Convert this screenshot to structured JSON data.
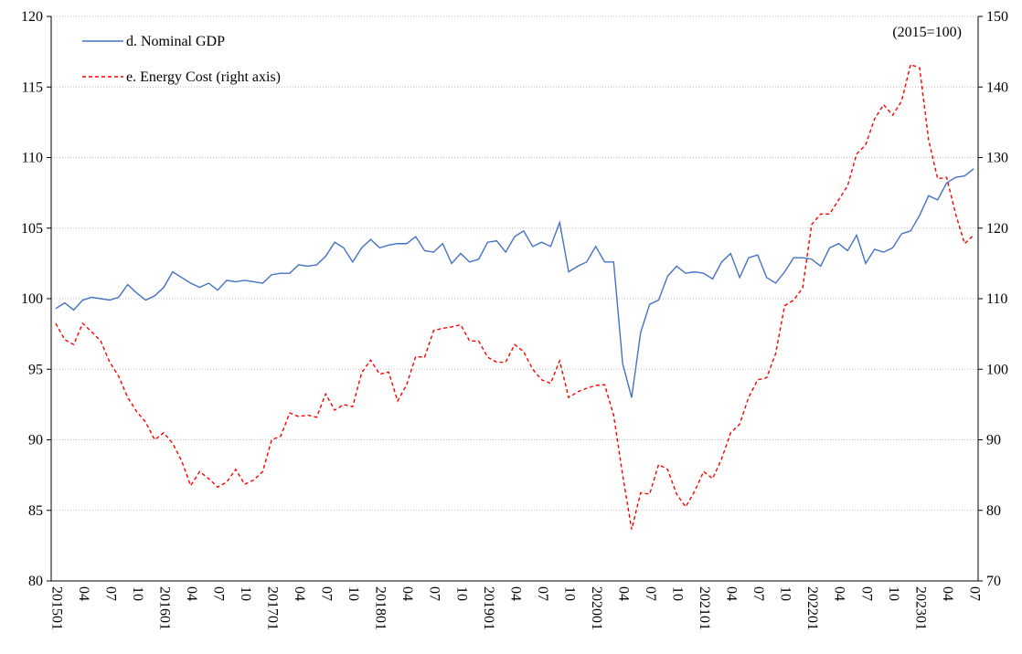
{
  "chart_data": {
    "type": "line",
    "annotation": "(2015=100)",
    "categories": [
      "201501",
      null,
      null,
      "04",
      null,
      null,
      "07",
      null,
      null,
      "10",
      null,
      null,
      "201601",
      null,
      null,
      "04",
      null,
      null,
      "07",
      null,
      null,
      "10",
      null,
      null,
      "201701",
      null,
      null,
      "04",
      null,
      null,
      "07",
      null,
      null,
      "10",
      null,
      null,
      "201801",
      null,
      null,
      "04",
      null,
      null,
      "07",
      null,
      null,
      "10",
      null,
      null,
      "201901",
      null,
      null,
      "04",
      null,
      null,
      "07",
      null,
      null,
      "10",
      null,
      null,
      "202001",
      null,
      null,
      "04",
      null,
      null,
      "07",
      null,
      null,
      "10",
      null,
      null,
      "202101",
      null,
      null,
      "04",
      null,
      null,
      "07",
      null,
      null,
      "10",
      null,
      null,
      "202201",
      null,
      null,
      "04",
      null,
      null,
      "07",
      null,
      null,
      "10",
      null,
      null,
      "202301",
      null,
      null,
      "04",
      null,
      null,
      "07"
    ],
    "series": [
      {
        "name": "d. Nominal GDP",
        "color": "#4472c4",
        "dash": false,
        "values": [
          99.3,
          99.7,
          99.2,
          99.9,
          100.1,
          100.0,
          99.9,
          100.1,
          101.0,
          100.4,
          99.9,
          100.2,
          100.8,
          101.9,
          101.5,
          101.1,
          100.8,
          101.1,
          100.6,
          101.3,
          101.2,
          101.3,
          101.2,
          101.1,
          101.7,
          101.8,
          101.8,
          102.4,
          102.3,
          102.4,
          103.0,
          104.0,
          103.6,
          102.6,
          103.6,
          104.2,
          103.6,
          103.8,
          103.9,
          103.9,
          104.4,
          103.4,
          103.3,
          103.9,
          102.5,
          103.2,
          102.6,
          102.8,
          104.0,
          104.1,
          103.3,
          104.4,
          104.8,
          103.7,
          104.0,
          103.7,
          105.4,
          101.9,
          102.3,
          102.6,
          103.7,
          102.6,
          102.6,
          95.4,
          93.0,
          97.6,
          99.6,
          99.9,
          101.6,
          102.3,
          101.8,
          101.9,
          101.8,
          101.4,
          102.6,
          103.2,
          101.5,
          102.9,
          103.1,
          101.5,
          101.1,
          101.9,
          102.9,
          102.9,
          102.8,
          102.3,
          103.6,
          103.9,
          103.4,
          104.5,
          102.5,
          103.5,
          103.3,
          103.6,
          104.6,
          104.8,
          105.9,
          107.3,
          107.0,
          108.2,
          108.6,
          108.7,
          109.2
        ]
      },
      {
        "name": "e. Energy Cost (right axis)",
        "color": "#ff0000",
        "dash": true,
        "axis": "y2",
        "values": [
          106.5,
          104.2,
          103.5,
          106.5,
          105.3,
          104.0,
          101.0,
          99.0,
          96.0,
          94.0,
          92.5,
          90.0,
          91.0,
          89.5,
          87.0,
          83.5,
          85.5,
          84.5,
          83.3,
          84.0,
          85.8,
          83.7,
          84.3,
          85.5,
          90.0,
          90.5,
          93.8,
          93.3,
          93.5,
          93.2,
          96.5,
          94.2,
          95.0,
          94.7,
          99.5,
          101.3,
          99.3,
          99.6,
          95.5,
          97.8,
          101.8,
          101.7,
          105.5,
          105.8,
          106.0,
          106.3,
          104.0,
          104.0,
          101.7,
          101.0,
          101.0,
          103.5,
          102.5,
          100.0,
          98.5,
          98.0,
          101.2,
          96.0,
          96.8,
          97.3,
          97.7,
          97.8,
          93.5,
          85.0,
          77.3,
          82.5,
          82.3,
          86.5,
          85.8,
          82.3,
          80.5,
          82.7,
          85.5,
          84.5,
          87.3,
          91.0,
          92.2,
          96.0,
          98.5,
          98.8,
          102.2,
          109.0,
          109.8,
          111.5,
          120.5,
          122.0,
          122.0,
          124.0,
          126.0,
          130.5,
          131.8,
          135.5,
          137.5,
          136.0,
          138.0,
          143.2,
          142.7,
          132.5,
          127.0,
          127.2,
          122.0,
          117.8,
          119.0
        ]
      }
    ],
    "ylim": [
      80,
      120
    ],
    "yticks": [
      80,
      85,
      90,
      95,
      100,
      105,
      110,
      115,
      120
    ],
    "y2lim": [
      70,
      150
    ],
    "y2ticks": [
      70,
      80,
      90,
      100,
      110,
      120,
      130,
      140,
      150
    ],
    "grid": true,
    "legend": "top-left"
  }
}
